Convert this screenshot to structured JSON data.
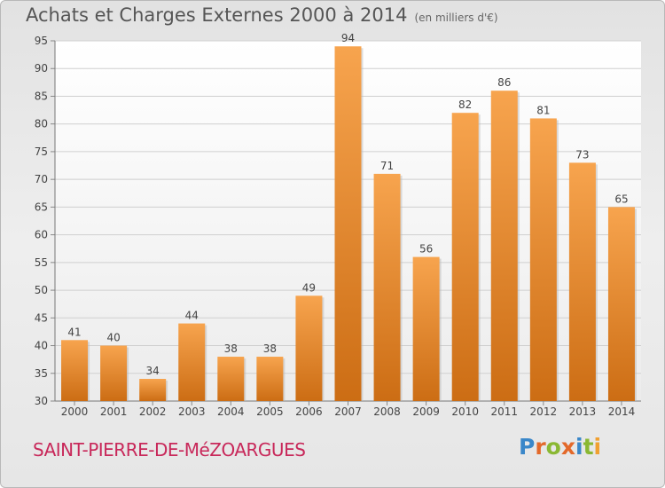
{
  "page": {
    "title": "Achats et Charges Externes 2000 à 2014",
    "unit": "(en milliers d'€)",
    "town": "SAINT-PIERRE-DE-MéZOARGUES",
    "logo": {
      "letters": [
        "P",
        "r",
        "o",
        "x",
        "i",
        "t",
        "i"
      ],
      "colors": [
        "#3a87c9",
        "#e3692a",
        "#8ab833",
        "#e3692a",
        "#3a87c9",
        "#8ab833",
        "#f0a030"
      ]
    }
  },
  "chart_data": {
    "type": "bar",
    "categories": [
      "2000",
      "2001",
      "2002",
      "2003",
      "2004",
      "2005",
      "2006",
      "2007",
      "2008",
      "2009",
      "2010",
      "2011",
      "2012",
      "2013",
      "2014"
    ],
    "values": [
      41,
      40,
      34,
      44,
      38,
      38,
      49,
      94,
      71,
      56,
      82,
      86,
      81,
      73,
      65
    ],
    "ylim": [
      30,
      95
    ],
    "yticks": [
      "30",
      "35",
      "40",
      "45",
      "50",
      "55",
      "60",
      "65",
      "70",
      "75",
      "80",
      "85",
      "90",
      "95"
    ],
    "grid": true,
    "bar_color_top": "#f7a44e",
    "bar_color_bottom": "#cc6d14"
  }
}
